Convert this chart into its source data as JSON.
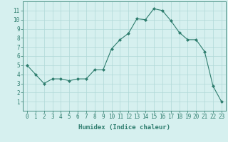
{
  "xlabel": "Humidex (Indice chaleur)",
  "x": [
    0,
    1,
    2,
    3,
    4,
    5,
    6,
    7,
    8,
    9,
    10,
    11,
    12,
    13,
    14,
    15,
    16,
    17,
    18,
    19,
    20,
    21,
    22,
    23
  ],
  "y": [
    5,
    4,
    3,
    3.5,
    3.5,
    3.3,
    3.5,
    3.5,
    4.5,
    4.5,
    6.8,
    7.8,
    8.5,
    10.1,
    10.0,
    11.2,
    11.0,
    9.9,
    8.6,
    7.8,
    7.8,
    6.5,
    2.7,
    1.0
  ],
  "line_color": "#2e7d6e",
  "marker": "D",
  "marker_size": 2,
  "background_color": "#d6f0ef",
  "grid_color": "#b0d8d8",
  "xlim": [
    -0.5,
    23.5
  ],
  "ylim": [
    0,
    12
  ],
  "yticks": [
    1,
    2,
    3,
    4,
    5,
    6,
    7,
    8,
    9,
    10,
    11
  ],
  "xticks": [
    0,
    1,
    2,
    3,
    4,
    5,
    6,
    7,
    8,
    9,
    10,
    11,
    12,
    13,
    14,
    15,
    16,
    17,
    18,
    19,
    20,
    21,
    22,
    23
  ],
  "tick_label_fontsize": 5.5,
  "xlabel_fontsize": 6.5,
  "axis_color": "#2e7d6e",
  "tick_color": "#2e7d6e"
}
